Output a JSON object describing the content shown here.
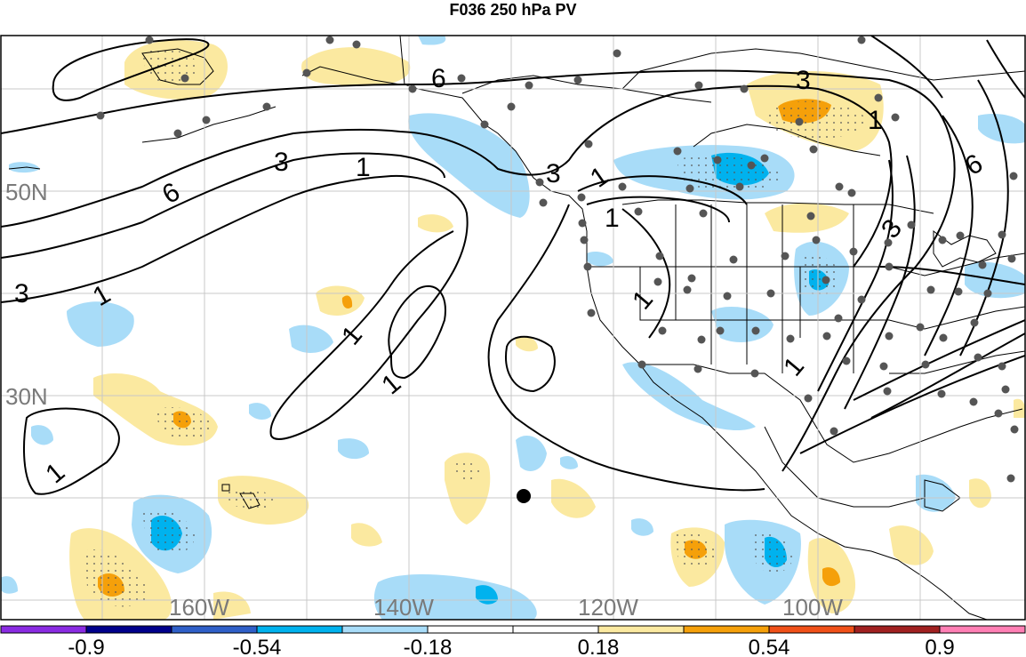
{
  "title": "F036 250 hPa PV",
  "latitude_labels": [
    "50N",
    "30N"
  ],
  "longitude_labels": [
    "160W",
    "140W",
    "120W",
    "100W"
  ],
  "contour_labels": [
    "6",
    "3",
    "1",
    "1",
    "3",
    "6",
    "3",
    "1",
    "1",
    "3",
    "1",
    "1",
    "6",
    "3",
    "1",
    "1",
    "1",
    "1"
  ],
  "colorbar": {
    "colors": [
      "#8a2be2",
      "#00008b",
      "#2f5fc8",
      "#00b2ee",
      "#a8dcf8",
      "#ffffff",
      "#ffffff",
      "#fbe9a0",
      "#f5a00a",
      "#f05018",
      "#a02020",
      "#ff7fb4"
    ],
    "tick_labels": [
      "-0.9",
      "-0.54",
      "-0.18",
      "0.18",
      "0.54",
      "0.9"
    ]
  },
  "colors": {
    "positive_light": "#fbe9a0",
    "positive_mid": "#f5a00a",
    "negative_light": "#a8dcf8",
    "negative_mid": "#00b2ee",
    "station_dot": "#555555",
    "gridline": "#c8c8c8"
  }
}
